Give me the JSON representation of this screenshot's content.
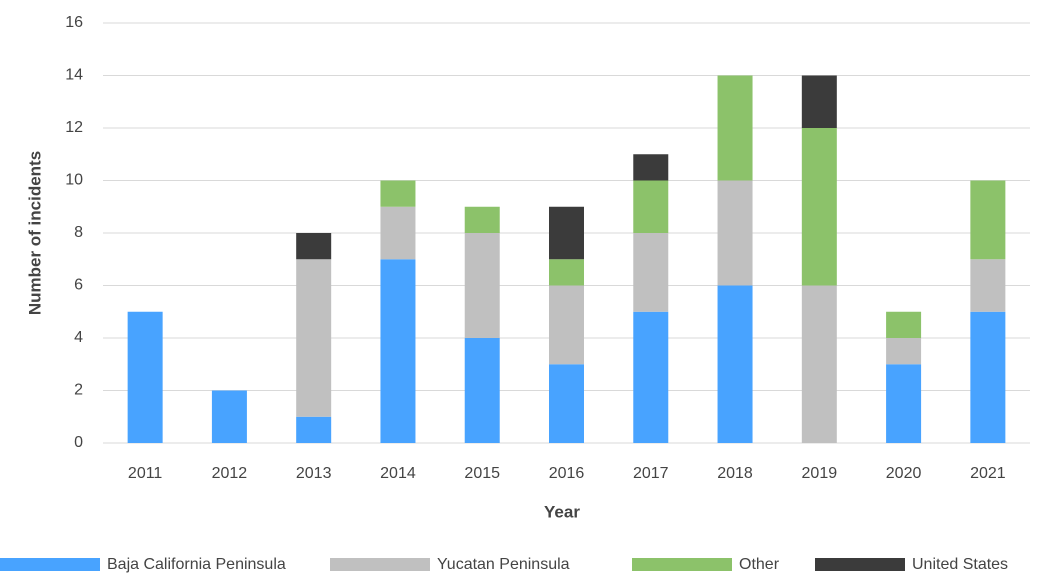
{
  "chart_data": {
    "type": "stacked_bar",
    "x_label": "Year",
    "y_label": "Number of incidents",
    "categories": [
      "2011",
      "2012",
      "2013",
      "2014",
      "2015",
      "2016",
      "2017",
      "2018",
      "2019",
      "2020",
      "2021"
    ],
    "series": [
      {
        "name": "Baja California Peninsula",
        "color": "#48a3ff",
        "values": [
          5,
          2,
          1,
          7,
          4,
          3,
          5,
          6,
          0,
          3,
          5
        ]
      },
      {
        "name": "Yucatan Peninsula",
        "color": "#c0c0c0",
        "values": [
          0,
          0,
          6,
          2,
          4,
          3,
          3,
          4,
          6,
          1,
          2
        ]
      },
      {
        "name": "Other",
        "color": "#8cc26a",
        "values": [
          0,
          0,
          0,
          1,
          1,
          1,
          2,
          4,
          6,
          1,
          3
        ]
      },
      {
        "name": "United States",
        "color": "#3b3b3b",
        "values": [
          0,
          0,
          1,
          0,
          0,
          2,
          1,
          0,
          2,
          0,
          0
        ]
      }
    ],
    "ylim": [
      0,
      16
    ],
    "yticks": [
      0,
      2,
      4,
      6,
      8,
      10,
      12,
      14,
      16
    ],
    "grid": true,
    "legend": "bottom"
  }
}
